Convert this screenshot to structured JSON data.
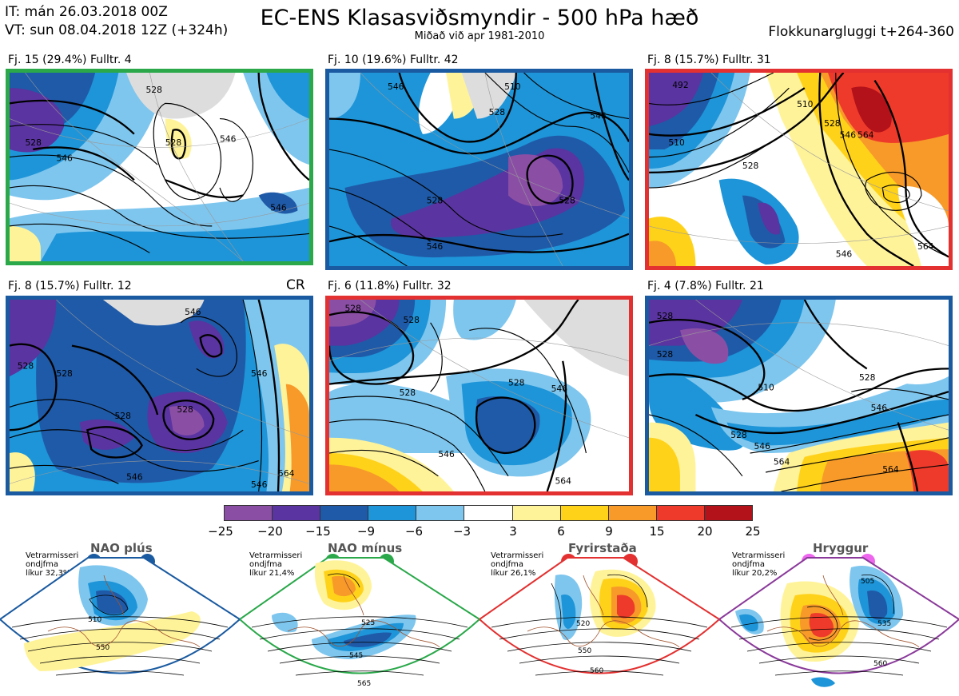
{
  "header": {
    "it": "IT: mán 26.03.2018 00Z",
    "vt": "VT: sun 08.04.2018 12Z  (+324h)",
    "title": "EC-ENS Klasasviðsmyndir - 500 hPa hæð",
    "subtitle": "Miðað við apr 1981-2010",
    "window": "Flokkunargluggi t+264-360"
  },
  "clusters": [
    {
      "label": "Fj. 15 (29.4%)  Fulltr. 4",
      "border": "#2aa84a",
      "contours": [
        "528",
        "528",
        "546",
        "546",
        "546",
        "546",
        "546",
        "528"
      ]
    },
    {
      "label": "Fj. 10 (19.6%)  Fulltr. 42",
      "border": "#1a5aa0",
      "contours": [
        "546",
        "510",
        "528",
        "546",
        "528",
        "528",
        "546",
        "528"
      ]
    },
    {
      "label": "Fj. 8 (15.7%)  Fulltr. 31",
      "border": "#e33030",
      "contours": [
        "492",
        "510",
        "528",
        "510",
        "546",
        "528",
        "564",
        "546",
        "564"
      ]
    },
    {
      "label": "Fj. 8 (15.7%)  Fulltr. 12",
      "border": "#1a5aa0",
      "contours": [
        "528",
        "528",
        "528",
        "528",
        "546",
        "546",
        "546",
        "564",
        "546"
      ],
      "tag": "CR"
    },
    {
      "label": "Fj. 6 (11.8%)  Fulltr. 32",
      "border": "#e33030",
      "contours": [
        "528",
        "528",
        "528",
        "528",
        "546",
        "546",
        "564"
      ]
    },
    {
      "label": "Fj. 4 (7.8%)  Fulltr. 21",
      "border": "#1a5aa0",
      "contours": [
        "528",
        "528",
        "528",
        "510",
        "528",
        "546",
        "564",
        "564",
        "546"
      ]
    }
  ],
  "colorbar": {
    "colors": [
      "#8a4fa5",
      "#5a34a0",
      "#1f5aa8",
      "#1e95d8",
      "#7ec6ee",
      "#ffffff",
      "#fff39a",
      "#ffd21a",
      "#f79a2a",
      "#ee3a2a",
      "#b3121a"
    ],
    "ticks": [
      "−25",
      "−20",
      "−15",
      "−9",
      "−6",
      "−3",
      "3",
      "6",
      "9",
      "15",
      "20",
      "25"
    ]
  },
  "regimes": [
    {
      "title": "NAO plús",
      "note1": "Vetrarmisseri",
      "note2": "ondjfma",
      "note3": "líkur 32,3%",
      "color": "#1a5aa0",
      "labels": [
        "510",
        "550"
      ]
    },
    {
      "title": "NAO mínus",
      "note1": "Vetrarmisseri",
      "note2": "ondjfma",
      "note3": "líkur 21,4%",
      "color": "#2aa84a",
      "labels": [
        "525",
        "545",
        "565"
      ]
    },
    {
      "title": "Fyrirstaða",
      "note1": "Vetrarmisseri",
      "note2": "ondjfma",
      "note3": "líkur 26,1%",
      "color": "#e33030",
      "labels": [
        "520",
        "550",
        "560"
      ]
    },
    {
      "title": "Hryggur",
      "note1": "Vetrarmisseri",
      "note2": "ondjfma",
      "note3": "líkur 20,2%",
      "color": "#8a3a9a",
      "labels": [
        "505",
        "535",
        "560"
      ]
    }
  ],
  "regime_dot_colors": [
    "#1a5aa0",
    "#2aa84a",
    "#e33030",
    "#ee66ee"
  ]
}
